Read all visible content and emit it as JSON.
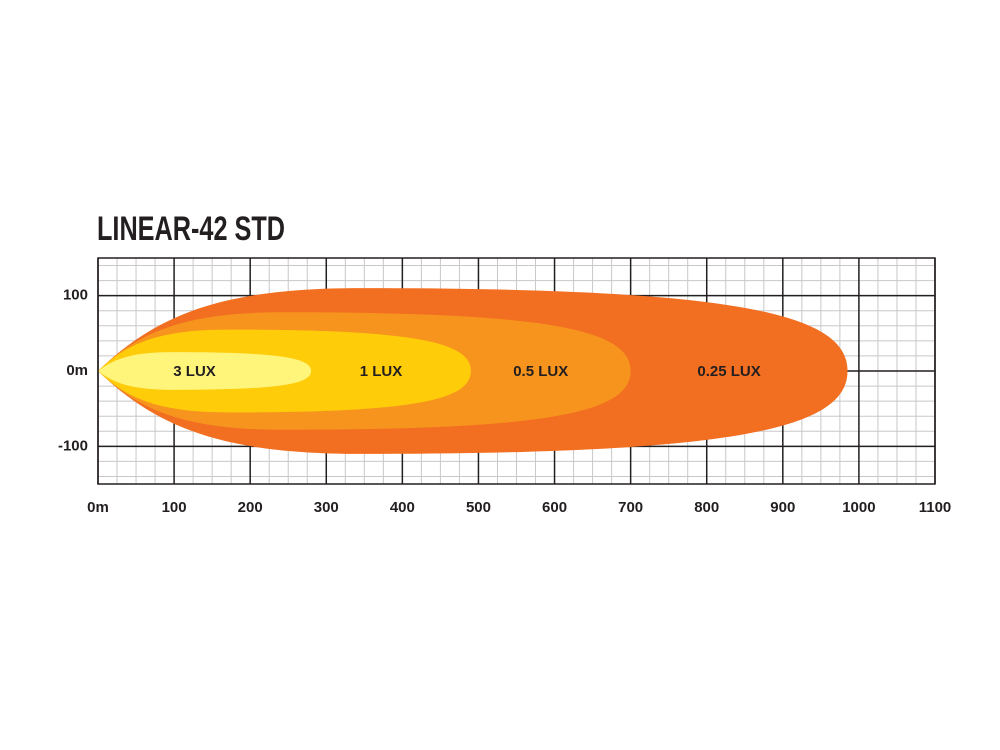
{
  "chart_data": {
    "type": "beam",
    "title": "LINEAR-42 STD",
    "series": [
      {
        "name": "3 LUX",
        "color": "#fff57a",
        "reach": 280,
        "width": 25
      },
      {
        "name": "1 LUX",
        "color": "#ffcc0a",
        "reach": 490,
        "width": 55
      },
      {
        "name": "0.5 LUX",
        "color": "#f7941d",
        "reach": 700,
        "width": 78
      },
      {
        "name": "0.25 LUX",
        "color": "#f26f21",
        "reach": 985,
        "width": 110
      }
    ],
    "xlim": [
      0,
      1100
    ],
    "xticks": [
      {
        "value": 0,
        "label": "0m"
      },
      100,
      200,
      300,
      400,
      500,
      600,
      700,
      800,
      900,
      1000,
      1100
    ],
    "ylim": [
      -150,
      150
    ],
    "yticks": [
      100,
      {
        "value": 0,
        "label": "0m"
      },
      -100
    ],
    "grid": true
  }
}
